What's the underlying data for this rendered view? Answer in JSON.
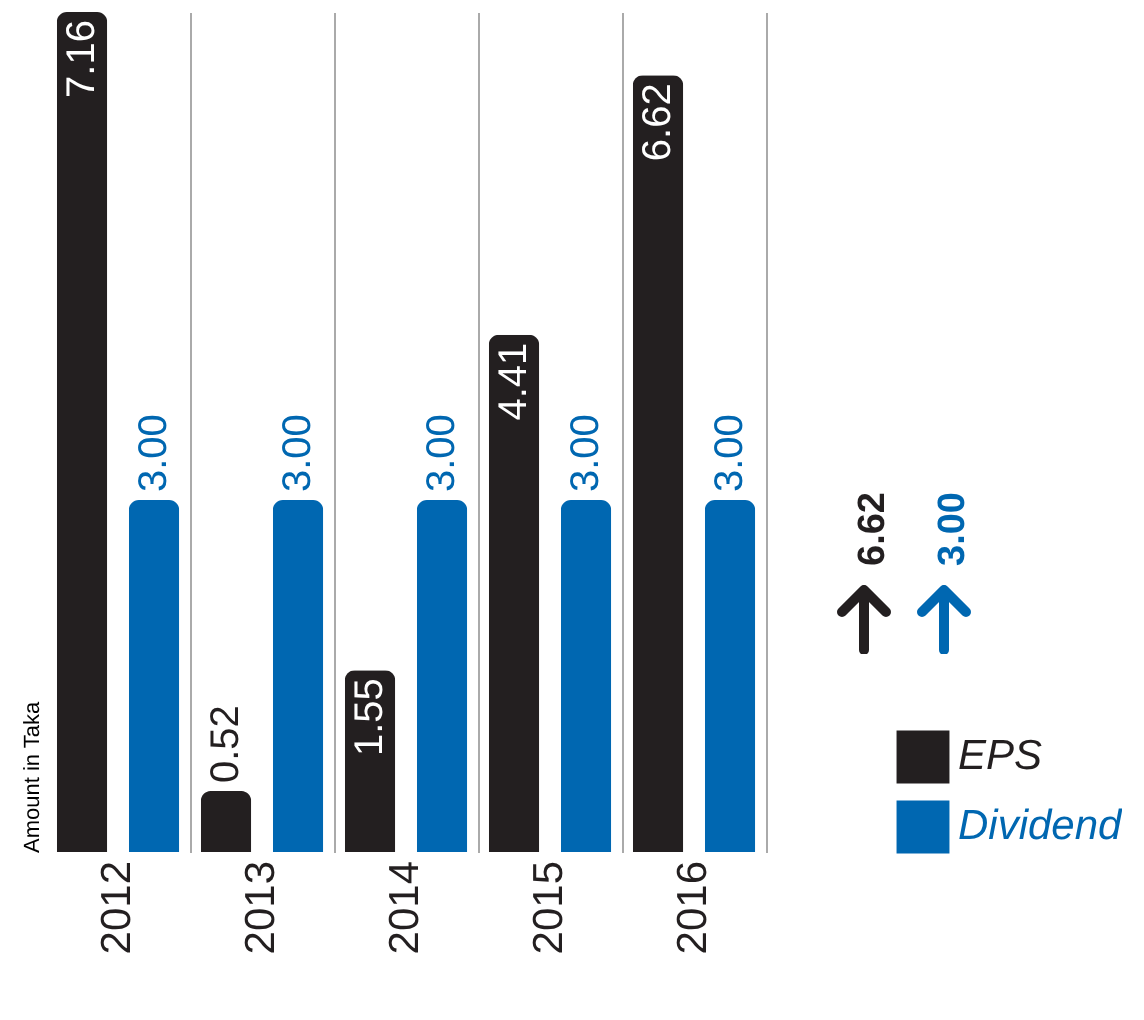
{
  "chart_data": {
    "type": "bar",
    "ylabel": "Amount in Taka",
    "categories": [
      "2012",
      "2013",
      "2014",
      "2015",
      "2016"
    ],
    "series": [
      {
        "name": "EPS",
        "color": "#231f20",
        "values": [
          7.16,
          0.52,
          1.55,
          4.41,
          6.62
        ],
        "value_labels": [
          "7.16",
          "0.52",
          "1.55",
          "4.41",
          "6.62"
        ]
      },
      {
        "name": "Dividend",
        "color": "#0067b1",
        "values": [
          3.0,
          3.0,
          3.0,
          3.0,
          3.0
        ],
        "value_labels": [
          "3.00",
          "3.00",
          "3.00",
          "3.00",
          "3.00"
        ]
      }
    ],
    "grid": "x",
    "legend": "bottom right",
    "annotations": [
      "6.62",
      "3.00"
    ]
  }
}
